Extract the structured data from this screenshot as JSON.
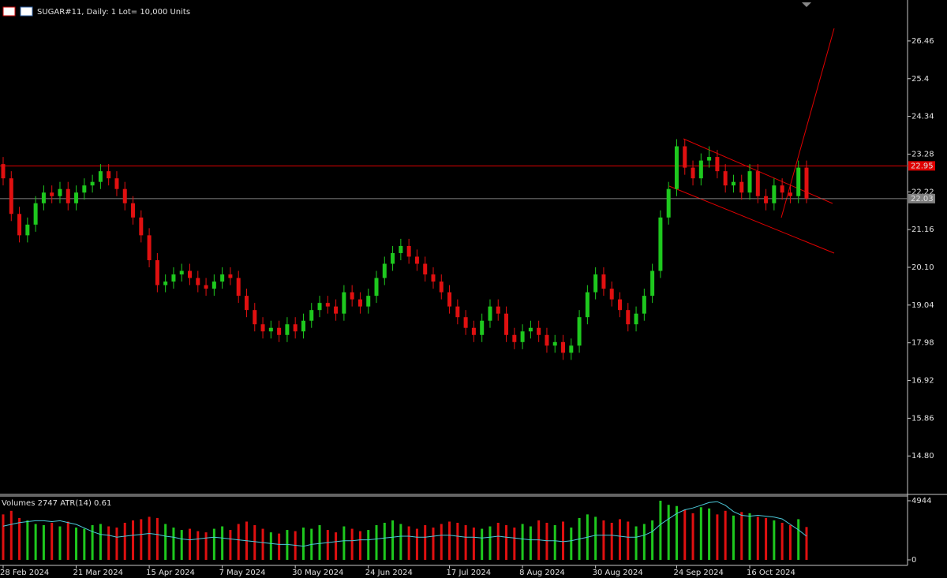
{
  "chart_data": {
    "type": "candlestick",
    "title": "SUGAR#11, Daily:  1 Lot= 10,000 Units",
    "up_color": "#1ec81e",
    "down_color": "#e01010",
    "open": [
      23.0,
      22.6,
      21.6,
      21.0,
      21.3,
      21.9,
      22.2,
      22.1,
      22.3,
      21.9,
      22.2,
      22.4,
      22.5,
      22.8,
      22.6,
      22.3,
      21.9,
      21.5,
      21.0,
      20.3,
      19.6,
      19.7,
      19.9,
      20.0,
      19.8,
      19.6,
      19.5,
      19.7,
      19.9,
      19.8,
      19.3,
      18.9,
      18.5,
      18.3,
      18.4,
      18.2,
      18.5,
      18.3,
      18.6,
      18.9,
      19.1,
      19.0,
      18.8,
      19.4,
      19.2,
      19.0,
      19.3,
      19.8,
      20.2,
      20.5,
      20.7,
      20.4,
      20.2,
      19.9,
      19.7,
      19.4,
      19.0,
      18.7,
      18.4,
      18.2,
      18.6,
      19.0,
      18.8,
      18.2,
      18.0,
      18.3,
      18.4,
      18.2,
      17.9,
      18.0,
      17.7,
      17.9,
      18.7,
      19.4,
      19.9,
      19.5,
      19.2,
      18.9,
      18.5,
      18.8,
      19.3,
      20.0,
      21.5,
      22.3,
      23.5,
      22.9,
      22.6,
      23.1,
      23.2,
      22.8,
      22.4,
      22.5,
      22.2,
      22.8,
      22.1,
      21.9,
      22.4,
      22.2,
      22.1,
      22.9
    ],
    "high": [
      23.2,
      22.8,
      21.8,
      21.5,
      22.1,
      22.4,
      22.4,
      22.5,
      22.5,
      22.4,
      22.6,
      22.7,
      23.0,
      23.0,
      22.8,
      22.5,
      22.1,
      21.7,
      21.2,
      20.5,
      19.9,
      20.1,
      20.2,
      20.2,
      20.0,
      19.8,
      19.9,
      20.1,
      20.1,
      20.0,
      19.5,
      19.1,
      18.7,
      18.6,
      18.6,
      18.7,
      18.7,
      18.8,
      19.1,
      19.3,
      19.3,
      19.2,
      19.6,
      19.6,
      19.4,
      19.5,
      20.0,
      20.4,
      20.7,
      20.9,
      20.9,
      20.6,
      20.4,
      20.1,
      19.9,
      19.6,
      19.2,
      18.9,
      18.6,
      18.8,
      19.2,
      19.2,
      19.0,
      18.4,
      18.5,
      18.6,
      18.6,
      18.4,
      18.2,
      18.2,
      18.1,
      18.9,
      19.6,
      20.1,
      20.1,
      19.7,
      19.4,
      19.1,
      19.0,
      19.5,
      20.2,
      21.7,
      22.5,
      23.7,
      23.7,
      23.1,
      23.3,
      23.5,
      23.4,
      23.0,
      22.7,
      22.7,
      23.0,
      23.0,
      22.3,
      22.6,
      22.6,
      22.4,
      23.1,
      23.1
    ],
    "low": [
      22.4,
      21.4,
      20.8,
      20.8,
      21.1,
      21.7,
      21.9,
      21.9,
      21.7,
      21.7,
      22.0,
      22.2,
      22.3,
      22.4,
      22.1,
      21.7,
      21.3,
      20.8,
      20.1,
      19.4,
      19.4,
      19.5,
      19.7,
      19.6,
      19.4,
      19.3,
      19.3,
      19.5,
      19.6,
      19.1,
      18.7,
      18.3,
      18.1,
      18.1,
      18.0,
      18.0,
      18.1,
      18.1,
      18.4,
      18.7,
      18.8,
      18.6,
      18.6,
      19.0,
      18.8,
      18.8,
      19.1,
      19.6,
      20.0,
      20.3,
      20.2,
      20.0,
      19.7,
      19.5,
      19.2,
      18.8,
      18.5,
      18.2,
      18.0,
      18.0,
      18.4,
      18.6,
      18.0,
      17.8,
      17.8,
      18.1,
      18.0,
      17.7,
      17.7,
      17.5,
      17.5,
      17.7,
      18.5,
      19.2,
      19.3,
      19.0,
      18.7,
      18.3,
      18.3,
      18.6,
      19.1,
      19.8,
      21.3,
      22.1,
      22.7,
      22.4,
      22.4,
      22.9,
      22.6,
      22.2,
      22.2,
      22.0,
      22.0,
      21.9,
      21.7,
      21.7,
      22.0,
      21.9,
      21.9,
      21.9
    ],
    "close": [
      22.6,
      21.6,
      21.0,
      21.3,
      21.9,
      22.2,
      22.1,
      22.3,
      21.9,
      22.2,
      22.4,
      22.5,
      22.8,
      22.6,
      22.3,
      21.9,
      21.5,
      21.0,
      20.3,
      19.6,
      19.7,
      19.9,
      20.0,
      19.8,
      19.6,
      19.5,
      19.7,
      19.9,
      19.8,
      19.3,
      18.9,
      18.5,
      18.3,
      18.4,
      18.2,
      18.5,
      18.3,
      18.6,
      18.9,
      19.1,
      19.0,
      18.8,
      19.4,
      19.2,
      19.0,
      19.3,
      19.8,
      20.2,
      20.5,
      20.7,
      20.4,
      20.2,
      19.9,
      19.7,
      19.4,
      19.0,
      18.7,
      18.4,
      18.2,
      18.6,
      19.0,
      18.8,
      18.2,
      18.0,
      18.3,
      18.4,
      18.2,
      17.9,
      18.0,
      17.7,
      17.9,
      18.7,
      19.4,
      19.9,
      19.5,
      19.2,
      18.9,
      18.5,
      18.8,
      19.3,
      20.0,
      21.5,
      22.3,
      23.5,
      22.9,
      22.6,
      23.1,
      23.2,
      22.8,
      22.4,
      22.5,
      22.2,
      22.8,
      22.1,
      21.9,
      22.4,
      22.2,
      22.1,
      22.9,
      22.03
    ],
    "ylim": [
      13.72,
      27.61
    ],
    "yticks": [
      26.46,
      25.4,
      24.34,
      23.28,
      22.22,
      21.16,
      {
        "value": 20.1,
        "label": "20.10"
      },
      19.04,
      17.98,
      16.92,
      15.86,
      {
        "value": 14.8,
        "label": "14.80"
      }
    ],
    "xticks": [
      {
        "value": 0,
        "label": "28 Feb 2024"
      },
      {
        "value": 9,
        "label": "21 Mar 2024"
      },
      {
        "value": 18,
        "label": "15 Apr 2024"
      },
      {
        "value": 27,
        "label": "7 May 2024"
      },
      {
        "value": 36,
        "label": "30 May 2024"
      },
      {
        "value": 45,
        "label": "24 Jun 2024"
      },
      {
        "value": 55,
        "label": "17 Jul 2024"
      },
      {
        "value": 64,
        "label": "8 Aug 2024"
      },
      {
        "value": 73,
        "label": "30 Aug 2024"
      },
      {
        "value": 83,
        "label": "24 Sep 2024"
      },
      {
        "value": 92,
        "label": "16 Oct 2024"
      }
    ],
    "levels": [
      {
        "value": 22.95,
        "color": "#e00000"
      },
      {
        "value": 22.03,
        "color": "#808080"
      }
    ],
    "volume": {
      "label": "Volumes 2747 ATR(14) 0.61",
      "ylim": [
        0,
        4944
      ],
      "yticks": [
        4944,
        0
      ],
      "values": [
        3800,
        4100,
        3500,
        3300,
        3000,
        2900,
        3100,
        2800,
        3200,
        2700,
        2600,
        2900,
        3000,
        2800,
        2700,
        3100,
        3300,
        3400,
        3600,
        3500,
        3000,
        2700,
        2500,
        2600,
        2400,
        2300,
        2600,
        2800,
        2500,
        3000,
        3200,
        2900,
        2600,
        2300,
        2200,
        2500,
        2400,
        2700,
        2600,
        2900,
        2500,
        2300,
        2800,
        2600,
        2400,
        2500,
        2900,
        3100,
        3300,
        3000,
        2800,
        2600,
        2900,
        2700,
        3000,
        3200,
        3100,
        2900,
        2700,
        2600,
        2800,
        3100,
        2900,
        2700,
        3000,
        2800,
        3300,
        3100,
        2900,
        3200,
        2700,
        3500,
        3800,
        3600,
        3300,
        3100,
        3400,
        3200,
        2800,
        3000,
        3300,
        4944,
        4600,
        4500,
        4200,
        3900,
        4400,
        4300,
        3800,
        4100,
        3700,
        4000,
        3900,
        3600,
        3500,
        3300,
        3100,
        2900,
        3400,
        2747
      ]
    },
    "atr": {
      "color": "#4cc8d8",
      "y2lim": [
        0.35,
        1.0
      ],
      "values": [
        0.72,
        0.74,
        0.76,
        0.77,
        0.78,
        0.78,
        0.77,
        0.78,
        0.76,
        0.74,
        0.7,
        0.66,
        0.63,
        0.62,
        0.6,
        0.61,
        0.62,
        0.63,
        0.64,
        0.63,
        0.61,
        0.6,
        0.58,
        0.57,
        0.58,
        0.59,
        0.6,
        0.59,
        0.58,
        0.57,
        0.56,
        0.55,
        0.54,
        0.53,
        0.52,
        0.52,
        0.51,
        0.5,
        0.52,
        0.53,
        0.54,
        0.55,
        0.56,
        0.56,
        0.57,
        0.57,
        0.58,
        0.59,
        0.6,
        0.61,
        0.61,
        0.6,
        0.6,
        0.61,
        0.62,
        0.62,
        0.61,
        0.6,
        0.6,
        0.59,
        0.6,
        0.61,
        0.6,
        0.59,
        0.58,
        0.57,
        0.57,
        0.56,
        0.56,
        0.55,
        0.56,
        0.58,
        0.6,
        0.62,
        0.62,
        0.62,
        0.61,
        0.6,
        0.6,
        0.62,
        0.66,
        0.74,
        0.8,
        0.86,
        0.9,
        0.92,
        0.95,
        0.98,
        0.99,
        0.95,
        0.88,
        0.84,
        0.83,
        0.84,
        0.83,
        0.82,
        0.8,
        0.74,
        0.68,
        0.61
      ]
    }
  }
}
